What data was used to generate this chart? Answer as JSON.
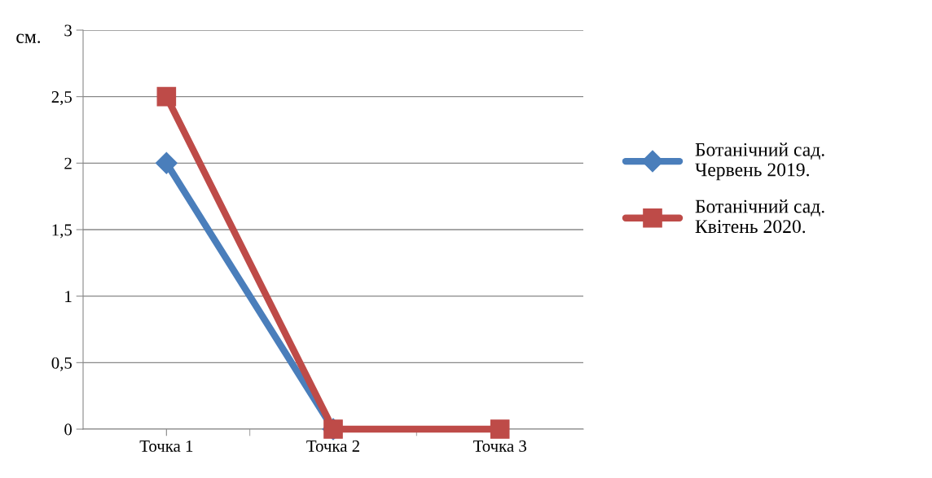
{
  "chart_data": {
    "type": "line",
    "ylabel": "см.",
    "categories": [
      "Точка 1",
      "Точка 2",
      "Точка 3"
    ],
    "series": [
      {
        "name": "Ботанічний сад. Червень 2019.",
        "color": "#4a7ebb",
        "values": [
          2,
          0,
          null
        ],
        "marker": "diamond"
      },
      {
        "name": "Ботанічний сад. Квітень 2020.",
        "color": "#be4b48",
        "values": [
          2.5,
          0,
          0
        ],
        "marker": "square"
      }
    ],
    "ylim": [
      0,
      3
    ],
    "yticks": [
      0,
      {
        "value": 0.5,
        "label": "0,5"
      },
      1,
      {
        "value": 1.5,
        "label": "1,5"
      },
      2,
      {
        "value": 2.5,
        "label": "2,5"
      },
      3
    ],
    "grid": "y",
    "legend": "right",
    "line_style": "solid"
  }
}
